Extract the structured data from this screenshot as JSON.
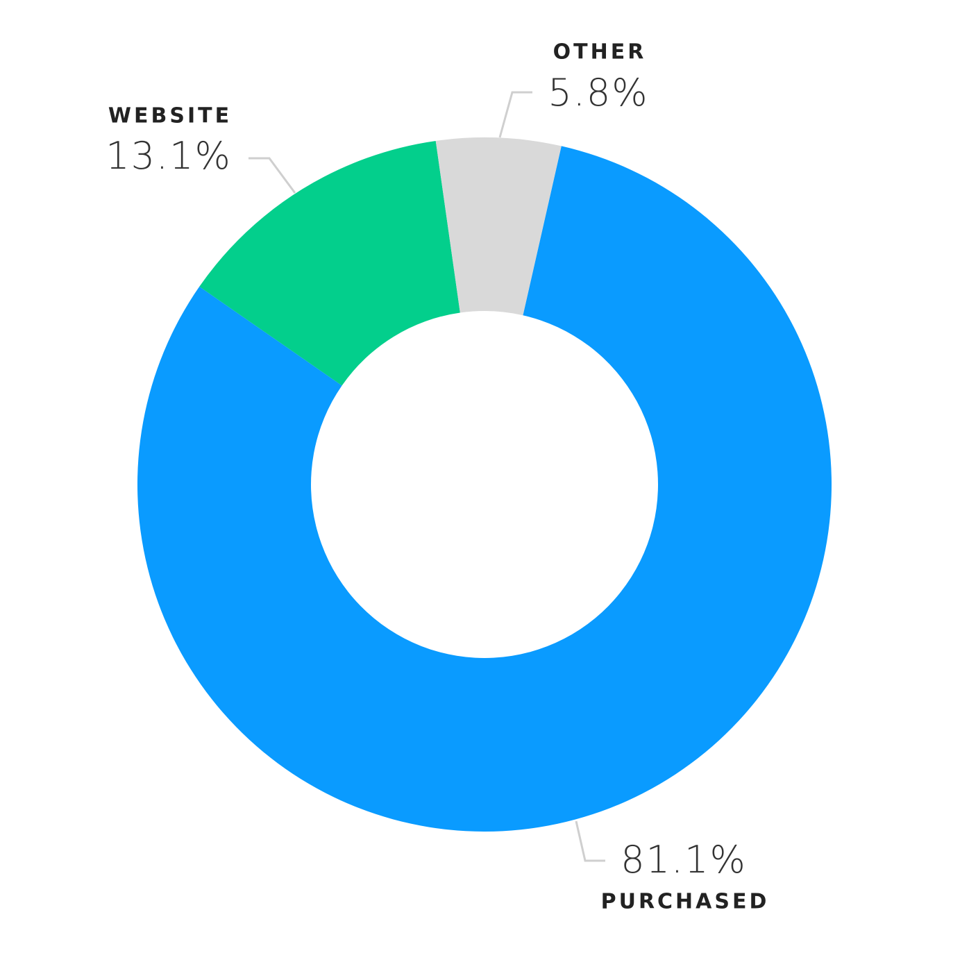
{
  "chart_data": {
    "type": "donut",
    "categories": [
      "PURCHASED",
      "WEBSITE",
      "OTHER"
    ],
    "values": [
      81.1,
      13.1,
      5.8
    ],
    "value_labels": [
      "81.1%",
      "13.1%",
      "5.8%"
    ],
    "colors": [
      "#0a9bff",
      "#03cf8c",
      "#d9d9d9"
    ]
  }
}
